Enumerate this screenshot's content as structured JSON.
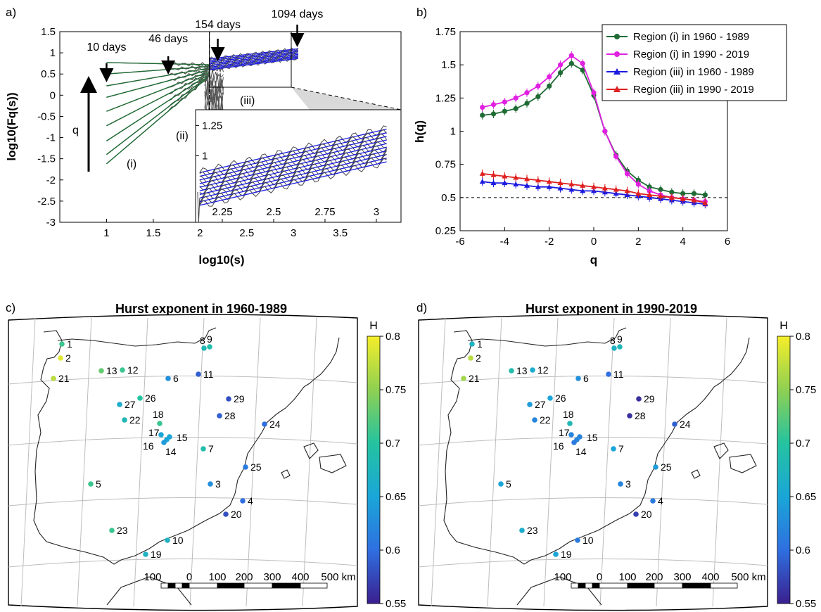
{
  "panel_labels": [
    "a)",
    "b)",
    "c)",
    "d)"
  ],
  "chart_data": [
    {
      "id": "panel-a",
      "type": "line",
      "xlabel": "log10(s)",
      "ylabel": "log10(Fq(s))",
      "xlim": [
        0.5,
        4.15
      ],
      "ylim": [
        -3,
        1.5
      ],
      "x_ticks": [
        "1",
        "1.5",
        "2",
        "2.5",
        "3",
        "3.5"
      ],
      "x_tick_values": [
        1,
        1.5,
        2,
        2.5,
        3,
        3.5
      ],
      "y_ticks": [
        "1.5",
        "1",
        "0.5",
        "0",
        "-0.5",
        "-1",
        "-1.5",
        "-2",
        "-2.5",
        "-3"
      ],
      "y_tick_values": [
        1.5,
        1,
        0.5,
        0,
        -0.5,
        -1,
        -1.5,
        -2,
        -2.5,
        -3
      ],
      "annotations": [
        {
          "text": "10 days",
          "x": 1.0
        },
        {
          "text": "46 days",
          "x": 1.66
        },
        {
          "text": "154 days",
          "x": 2.19
        },
        {
          "text": "1094 days",
          "x": 3.04
        }
      ],
      "region_labels": [
        "(i)",
        "(ii)",
        "(iii)"
      ],
      "q_label": "q",
      "region_i_fits": {
        "x_start": 1.0,
        "x_end": 2.1,
        "start_values": [
          0.77,
          0.5,
          0.22,
          -0.05,
          -0.38,
          -0.72,
          -1.08,
          -1.4,
          -1.62
        ],
        "end_values": [
          0.72,
          0.68,
          0.64,
          0.6,
          0.56,
          0.53,
          0.5,
          0.47,
          0.45
        ]
      },
      "region_iii_fits": {
        "x_start": 2.1,
        "x_end": 3.55,
        "start_values": [
          0.86,
          0.82,
          0.78,
          0.74,
          0.7,
          0.66,
          0.63,
          0.6
        ],
        "end_values": [
          1.22,
          1.19,
          1.16,
          1.13,
          1.1,
          1.07,
          1.04,
          1.01
        ]
      },
      "inset": {
        "xlim": [
          2.12,
          3.12
        ],
        "ylim": [
          0.45,
          1.38
        ],
        "x_ticks": [
          "2.25",
          "2.5",
          "2.75",
          "3"
        ],
        "x_tick_values": [
          2.25,
          2.5,
          2.75,
          3
        ],
        "y_ticks": [
          "1.25",
          "1"
        ],
        "y_tick_values": [
          1.25,
          1
        ]
      }
    },
    {
      "id": "panel-b",
      "type": "line",
      "xlabel": "q",
      "ylabel": "h(q)",
      "xlim": [
        -6,
        6
      ],
      "ylim": [
        0.25,
        1.75
      ],
      "x_ticks": [
        "-6",
        "-4",
        "-2",
        "0",
        "2",
        "4",
        "6"
      ],
      "x_tick_values": [
        -6,
        -4,
        -2,
        0,
        2,
        4,
        6
      ],
      "y_ticks": [
        "1.75",
        "1.5",
        "1.25",
        "1",
        "0.75",
        "0.5",
        "0.25"
      ],
      "y_tick_values": [
        1.75,
        1.5,
        1.25,
        1,
        0.75,
        0.5,
        0.25
      ],
      "reference_line": 0.5,
      "legend_position": "top-right",
      "x": [
        -5,
        -4.5,
        -4,
        -3.5,
        -3,
        -2.5,
        -2,
        -1.5,
        -1,
        -0.5,
        0,
        0.5,
        1,
        1.5,
        2,
        2.5,
        3,
        3.5,
        4,
        4.5,
        5
      ],
      "series": [
        {
          "name": "Region (i) in 1960 - 1989",
          "color": "#1f6b35",
          "marker": "circle",
          "values": [
            1.12,
            1.13,
            1.15,
            1.17,
            1.21,
            1.26,
            1.34,
            1.44,
            1.51,
            1.46,
            1.27,
            1.0,
            0.82,
            0.7,
            0.63,
            0.58,
            0.56,
            0.54,
            0.53,
            0.53,
            0.52
          ]
        },
        {
          "name": "Region (i) in 1990 - 2019",
          "color": "#e020e0",
          "marker": "circle",
          "values": [
            1.18,
            1.2,
            1.22,
            1.25,
            1.29,
            1.34,
            1.41,
            1.5,
            1.57,
            1.51,
            1.29,
            1.0,
            0.81,
            0.68,
            0.6,
            0.55,
            0.52,
            0.5,
            0.49,
            0.48,
            0.47
          ]
        },
        {
          "name": "Region (iii) in 1960 - 1989",
          "color": "#1b1be0",
          "marker": "triangle",
          "values": [
            0.62,
            0.61,
            0.61,
            0.6,
            0.59,
            0.58,
            0.58,
            0.57,
            0.56,
            0.55,
            0.55,
            0.54,
            0.53,
            0.52,
            0.51,
            0.5,
            0.49,
            0.48,
            0.47,
            0.46,
            0.45
          ]
        },
        {
          "name": "Region (iii) in 1990 - 2019",
          "color": "#e02020",
          "marker": "triangle",
          "values": [
            0.68,
            0.67,
            0.66,
            0.65,
            0.64,
            0.63,
            0.62,
            0.61,
            0.6,
            0.59,
            0.58,
            0.57,
            0.56,
            0.55,
            0.53,
            0.52,
            0.51,
            0.5,
            0.49,
            0.48,
            0.46
          ]
        }
      ]
    }
  ],
  "maps": {
    "colorbar_label": "H",
    "colorbar_ticks": [
      "0.8",
      "0.75",
      "0.7",
      "0.65",
      "0.6",
      "0.55"
    ],
    "colorbar_range": [
      0.55,
      0.8
    ],
    "scalebar_labels": [
      "100",
      "0",
      "100",
      "200",
      "300",
      "400",
      "500 km"
    ],
    "panels": [
      {
        "title": "Hurst exponent in 1960-1989",
        "stations": [
          {
            "id": "1",
            "h": 0.71
          },
          {
            "id": "2",
            "h": 0.79
          },
          {
            "id": "3",
            "h": 0.63
          },
          {
            "id": "4",
            "h": 0.6
          },
          {
            "id": "5",
            "h": 0.71
          },
          {
            "id": "6",
            "h": 0.63
          },
          {
            "id": "7",
            "h": 0.69
          },
          {
            "id": "8",
            "h": 0.68
          },
          {
            "id": "9",
            "h": 0.69
          },
          {
            "id": "10",
            "h": 0.67
          },
          {
            "id": "11",
            "h": 0.59
          },
          {
            "id": "12",
            "h": 0.71
          },
          {
            "id": "13",
            "h": 0.73
          },
          {
            "id": "14",
            "h": 0.65
          },
          {
            "id": "15",
            "h": 0.65
          },
          {
            "id": "16",
            "h": 0.64
          },
          {
            "id": "17",
            "h": 0.65
          },
          {
            "id": "18",
            "h": 0.71
          },
          {
            "id": "19",
            "h": 0.67
          },
          {
            "id": "20",
            "h": 0.58
          },
          {
            "id": "21",
            "h": 0.77
          },
          {
            "id": "22",
            "h": 0.68
          },
          {
            "id": "23",
            "h": 0.71
          },
          {
            "id": "24",
            "h": 0.6
          },
          {
            "id": "25",
            "h": 0.61
          },
          {
            "id": "26",
            "h": 0.7
          },
          {
            "id": "27",
            "h": 0.66
          },
          {
            "id": "28",
            "h": 0.59
          },
          {
            "id": "29",
            "h": 0.58
          }
        ]
      },
      {
        "title": "Hurst exponent in 1990-2019",
        "stations": [
          {
            "id": "1",
            "h": 0.67
          },
          {
            "id": "2",
            "h": 0.77
          },
          {
            "id": "3",
            "h": 0.62
          },
          {
            "id": "4",
            "h": 0.61
          },
          {
            "id": "5",
            "h": 0.65
          },
          {
            "id": "6",
            "h": 0.63
          },
          {
            "id": "7",
            "h": 0.65
          },
          {
            "id": "8",
            "h": 0.67
          },
          {
            "id": "9",
            "h": 0.68
          },
          {
            "id": "10",
            "h": 0.61
          },
          {
            "id": "11",
            "h": 0.6
          },
          {
            "id": "12",
            "h": 0.66
          },
          {
            "id": "13",
            "h": 0.69
          },
          {
            "id": "14",
            "h": 0.62
          },
          {
            "id": "15",
            "h": 0.62
          },
          {
            "id": "16",
            "h": 0.61
          },
          {
            "id": "17",
            "h": 0.62
          },
          {
            "id": "18",
            "h": 0.68
          },
          {
            "id": "19",
            "h": 0.65
          },
          {
            "id": "20",
            "h": 0.57
          },
          {
            "id": "21",
            "h": 0.76
          },
          {
            "id": "22",
            "h": 0.62
          },
          {
            "id": "23",
            "h": 0.66
          },
          {
            "id": "24",
            "h": 0.59
          },
          {
            "id": "25",
            "h": 0.64
          },
          {
            "id": "26",
            "h": 0.65
          },
          {
            "id": "27",
            "h": 0.64
          },
          {
            "id": "28",
            "h": 0.56
          },
          {
            "id": "29",
            "h": 0.56
          }
        ]
      }
    ]
  }
}
